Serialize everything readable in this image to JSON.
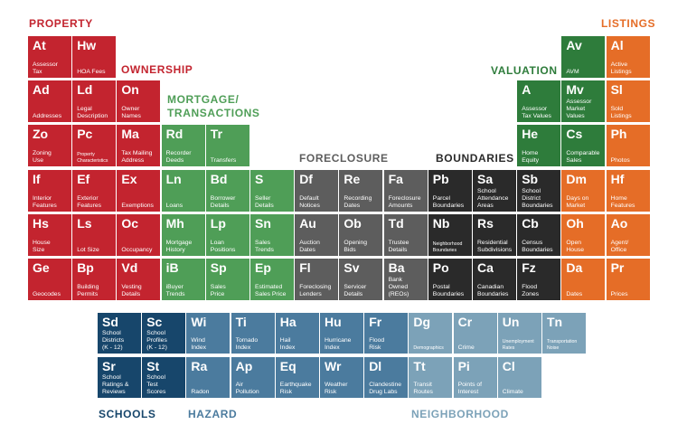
{
  "colors": {
    "property": "#c3242f",
    "ownership": "#c3242f",
    "mortgage": "#4f9e57",
    "foreclosure": "#5d5d5d",
    "boundaries": "#2a2a2a",
    "valuation": "#2e7c3b",
    "listings": "#e56d27",
    "schools": "#17466b",
    "hazard": "#4b7b9e",
    "neighborhood": "#7ca2b8"
  },
  "categories": {
    "property": "PROPERTY",
    "ownership": "OWNERSHIP",
    "mortgage": "MORTGAGE/\nTRANSACTIONS",
    "foreclosure": "FORECLOSURE",
    "boundaries": "BOUNDARIES",
    "valuation": "VALUATION",
    "listings": "LISTINGS",
    "schools": "SCHOOLS",
    "hazard": "HAZARD",
    "neighborhood": "NEIGHBORHOOD"
  },
  "tiles": [
    {
      "sym": "At",
      "label": "Assessor\nTax",
      "group": "property"
    },
    {
      "sym": "Hw",
      "label": "HOA Fees",
      "group": "property"
    },
    {
      "sym": "Ad",
      "label": "Addresses",
      "group": "property"
    },
    {
      "sym": "Ld",
      "label": "Legal\nDescription",
      "group": "property"
    },
    {
      "sym": "On",
      "label": "Owner\nNames",
      "group": "ownership"
    },
    {
      "sym": "Zo",
      "label": "Zoning\nUse",
      "group": "property"
    },
    {
      "sym": "Pc",
      "label": "Property\nCharacteristics",
      "group": "property",
      "small": true
    },
    {
      "sym": "Ma",
      "label": "Tax Mailing\nAddress",
      "group": "ownership"
    },
    {
      "sym": "Rd",
      "label": "Recorder\nDeeds",
      "group": "mortgage"
    },
    {
      "sym": "Tr",
      "label": "Transfers",
      "group": "mortgage"
    },
    {
      "sym": "If",
      "label": "Interior\nFeatures",
      "group": "property"
    },
    {
      "sym": "Ef",
      "label": "Exterior\nFeatures",
      "group": "property"
    },
    {
      "sym": "Ex",
      "label": "Exemptions",
      "group": "ownership"
    },
    {
      "sym": "Ln",
      "label": "Loans",
      "group": "mortgage"
    },
    {
      "sym": "Bd",
      "label": "Borrower\nDetails",
      "group": "mortgage"
    },
    {
      "sym": "S",
      "label": "Seller\nDetails",
      "group": "mortgage"
    },
    {
      "sym": "Df",
      "label": "Default\nNotices",
      "group": "foreclosure"
    },
    {
      "sym": "Re",
      "label": "Recording\nDates",
      "group": "foreclosure"
    },
    {
      "sym": "Fa",
      "label": "Foreclosure\nAmounts",
      "group": "foreclosure"
    },
    {
      "sym": "Pb",
      "label": "Parcel\nBoundaries",
      "group": "boundaries"
    },
    {
      "sym": "Sa",
      "label": "School\nAttendance\nAreas",
      "group": "boundaries"
    },
    {
      "sym": "Sb",
      "label": "School\nDistrict\nBoundaries",
      "group": "boundaries"
    },
    {
      "sym": "Hs",
      "label": "House\nSize",
      "group": "property"
    },
    {
      "sym": "Ls",
      "label": "Lot Size",
      "group": "property"
    },
    {
      "sym": "Oc",
      "label": "Occupancy",
      "group": "ownership"
    },
    {
      "sym": "Mh",
      "label": "Mortgage\nHistory",
      "group": "mortgage"
    },
    {
      "sym": "Lp",
      "label": "Loan\nPositions",
      "group": "mortgage"
    },
    {
      "sym": "Sn",
      "label": "Sales\nTrends",
      "group": "mortgage"
    },
    {
      "sym": "Au",
      "label": "Auction\nDates",
      "group": "foreclosure"
    },
    {
      "sym": "Ob",
      "label": "Opening\nBids",
      "group": "foreclosure"
    },
    {
      "sym": "Td",
      "label": "Trustee\nDetails",
      "group": "foreclosure"
    },
    {
      "sym": "Nb",
      "label": "Neighborhood\nBoundaries",
      "group": "boundaries",
      "small": true
    },
    {
      "sym": "Rs",
      "label": "Residential\nSubdivisions",
      "group": "boundaries"
    },
    {
      "sym": "Cb",
      "label": "Census\nBoundaries",
      "group": "boundaries"
    },
    {
      "sym": "Ge",
      "label": "Geocodes",
      "group": "property"
    },
    {
      "sym": "Bp",
      "label": "Building\nPermits",
      "group": "property"
    },
    {
      "sym": "Vd",
      "label": "Vesting\nDetails",
      "group": "ownership"
    },
    {
      "sym": "iB",
      "label": "iBuyer\nTrends",
      "group": "mortgage"
    },
    {
      "sym": "Sp",
      "label": "Sales\nPrice",
      "group": "mortgage"
    },
    {
      "sym": "Ep",
      "label": "Estimated\nSales Price",
      "group": "mortgage"
    },
    {
      "sym": "Fl",
      "label": "Foreclosing\nLenders",
      "group": "foreclosure"
    },
    {
      "sym": "Sv",
      "label": "Servicer\nDetails",
      "group": "foreclosure"
    },
    {
      "sym": "Ba",
      "label": "Bank\nOwned\n(REOs)",
      "group": "foreclosure"
    },
    {
      "sym": "Po",
      "label": "Postal\nBoundaries",
      "group": "boundaries"
    },
    {
      "sym": "Ca",
      "label": "Canadian\nBoundaries",
      "group": "boundaries"
    },
    {
      "sym": "Fz",
      "label": "Flood\nZones",
      "group": "boundaries"
    },
    {
      "sym": "Av",
      "label": "AVM",
      "group": "valuation"
    },
    {
      "sym": "A",
      "label": "Assessor\nTax Values",
      "group": "valuation"
    },
    {
      "sym": "Mv",
      "label": "Assessor\nMarket\nValues",
      "group": "valuation"
    },
    {
      "sym": "He",
      "label": "Home\nEquity",
      "group": "valuation"
    },
    {
      "sym": "Cs",
      "label": "Comparable\nSales",
      "group": "valuation"
    },
    {
      "sym": "Al",
      "label": "Active\nListings",
      "group": "listings"
    },
    {
      "sym": "Sl",
      "label": "Sold\nListings",
      "group": "listings"
    },
    {
      "sym": "Ph",
      "label": "Photos",
      "group": "listings"
    },
    {
      "sym": "Dm",
      "label": "Days on\nMarket",
      "group": "listings"
    },
    {
      "sym": "Hf",
      "label": "Home\nFeatures",
      "group": "listings"
    },
    {
      "sym": "Oh",
      "label": "Open\nHouse",
      "group": "listings"
    },
    {
      "sym": "Ao",
      "label": "Agent/\nOffice",
      "group": "listings"
    },
    {
      "sym": "Da",
      "label": "Dates",
      "group": "listings"
    },
    {
      "sym": "Pr",
      "label": "Prices",
      "group": "listings"
    },
    {
      "sym": "Sd",
      "label": "School\nDistricts\n(K - 12)",
      "group": "schools"
    },
    {
      "sym": "Sc",
      "label": "School\nProfiles\n(K - 12)",
      "group": "schools"
    },
    {
      "sym": "Sr",
      "label": "School\nRatings &\nReviews",
      "group": "schools"
    },
    {
      "sym": "St",
      "label": "School\nTest\nScores",
      "group": "schools"
    },
    {
      "sym": "Wi",
      "label": "Wind\nIndex",
      "group": "hazard"
    },
    {
      "sym": "Ti",
      "label": "Tornado\nIndex",
      "group": "hazard"
    },
    {
      "sym": "Ha",
      "label": "Hail\nIndex",
      "group": "hazard"
    },
    {
      "sym": "Hu",
      "label": "Hurricane\nIndex",
      "group": "hazard"
    },
    {
      "sym": "Fr",
      "label": "Flood\nRisk",
      "group": "hazard"
    },
    {
      "sym": "Ra",
      "label": "Radon",
      "group": "hazard"
    },
    {
      "sym": "Ap",
      "label": "Air\nPollution",
      "group": "hazard"
    },
    {
      "sym": "Eq",
      "label": "Earthquake\nRisk",
      "group": "hazard"
    },
    {
      "sym": "Wr",
      "label": "Weather\nRisk",
      "group": "hazard"
    },
    {
      "sym": "Dl",
      "label": "Clandestine\nDrug Labs",
      "group": "hazard"
    },
    {
      "sym": "Dg",
      "label": "Demographics",
      "group": "neighborhood",
      "small": true
    },
    {
      "sym": "Cr",
      "label": "Crime",
      "group": "neighborhood"
    },
    {
      "sym": "Un",
      "label": "Unemployment\nRates",
      "group": "neighborhood",
      "small": true
    },
    {
      "sym": "Tn",
      "label": "Transportation\nNoise",
      "group": "neighborhood",
      "small": true
    },
    {
      "sym": "Tt",
      "label": "Transit\nRoutes",
      "group": "neighborhood"
    },
    {
      "sym": "Pi",
      "label": "Points of\nInterest",
      "group": "neighborhood"
    },
    {
      "sym": "Cl",
      "label": "Climate",
      "group": "neighborhood"
    }
  ]
}
